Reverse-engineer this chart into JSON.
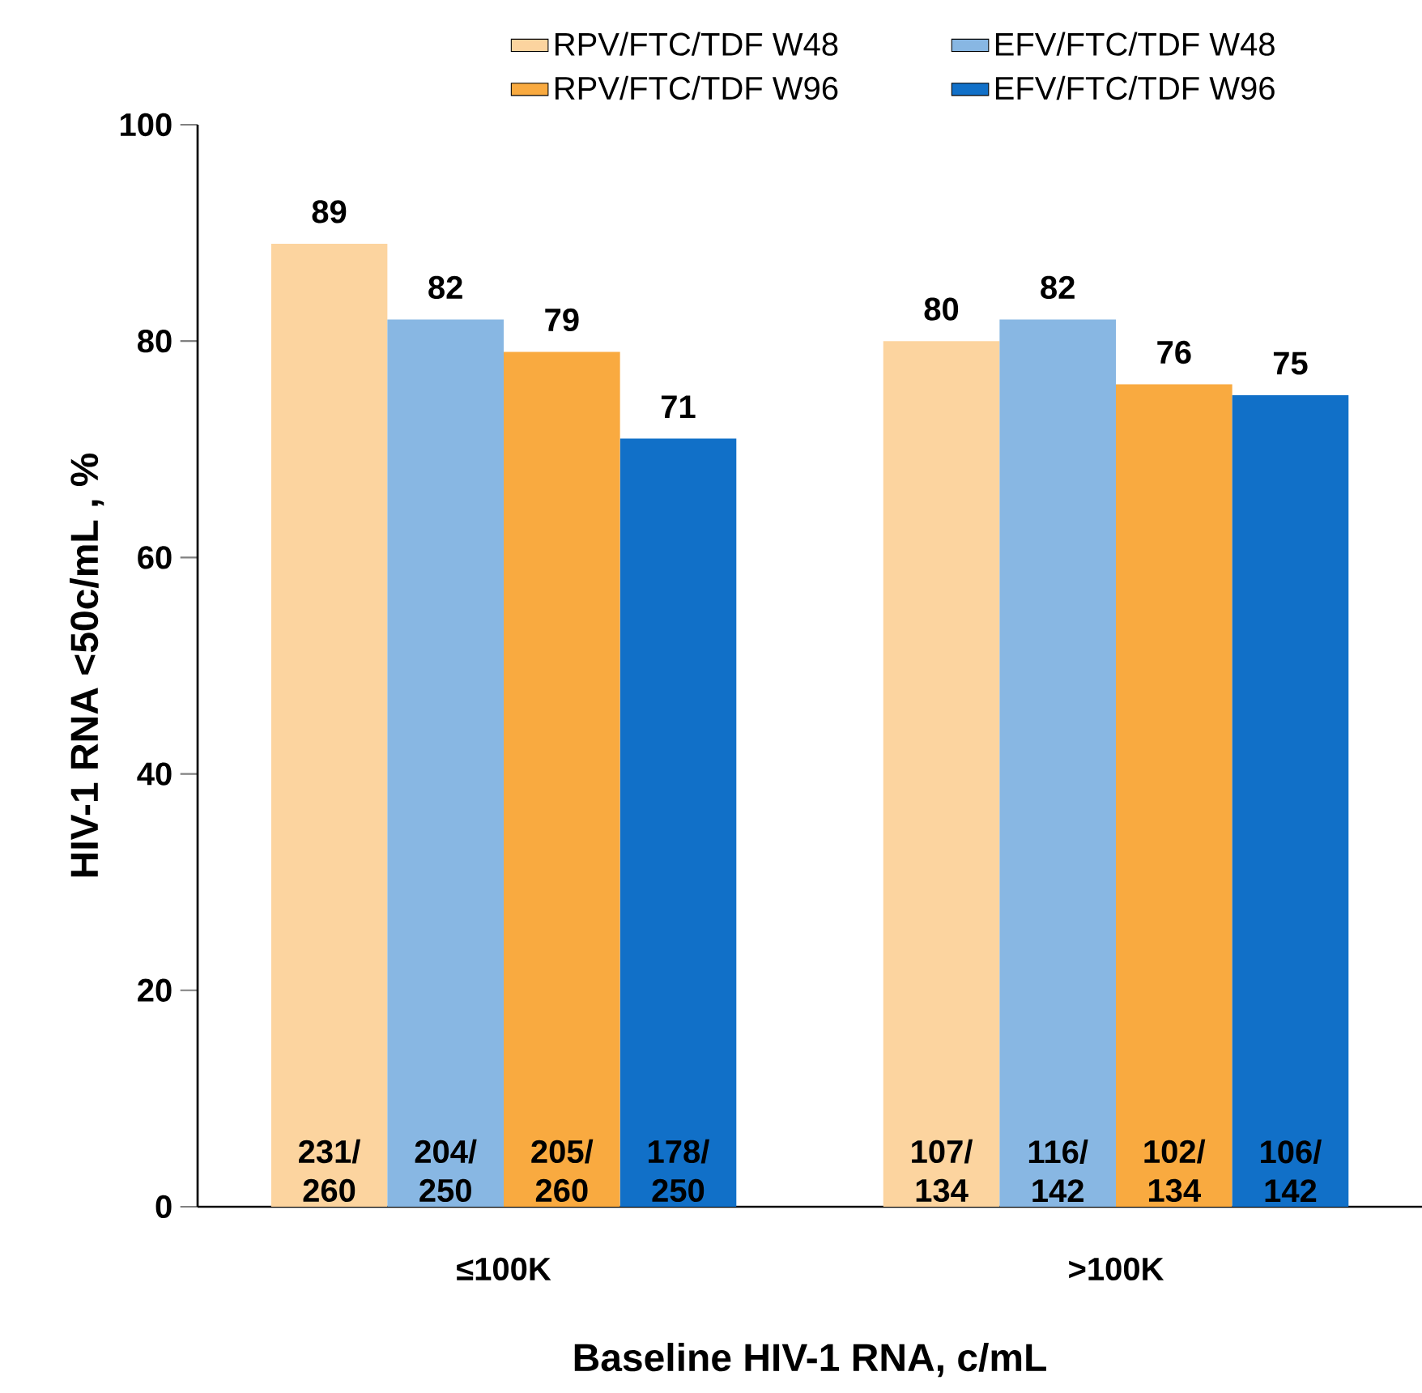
{
  "chart_data": {
    "type": "bar",
    "xlabel": "Baseline HIV-1 RNA, c/mL",
    "ylabel": "HIV-1 RNA <50c/mL , %",
    "categories": [
      "≤100K",
      ">100K"
    ],
    "series": [
      {
        "name": "RPV/FTC/TDF W48",
        "color": "#fcd49f",
        "values": [
          89,
          80
        ]
      },
      {
        "name": "EFV/FTC/TDF W48",
        "color": "#88b7e3",
        "values": [
          82,
          82
        ]
      },
      {
        "name": "RPV/FTC/TDF W96",
        "color": "#f9aa40",
        "values": [
          79,
          76
        ]
      },
      {
        "name": "EFV/FTC/TDF W96",
        "color": "#1170c8",
        "values": [
          71,
          75
        ]
      }
    ],
    "ylim": [
      0,
      100
    ],
    "yticks": [
      0,
      20,
      40,
      60,
      80,
      100
    ],
    "grid": false,
    "legend": "top",
    "data_labels": true,
    "annotations": [
      "231/260",
      "204/250",
      "205/260",
      "178/250",
      "107/134",
      "116/142",
      "102/134",
      "106/142"
    ]
  }
}
